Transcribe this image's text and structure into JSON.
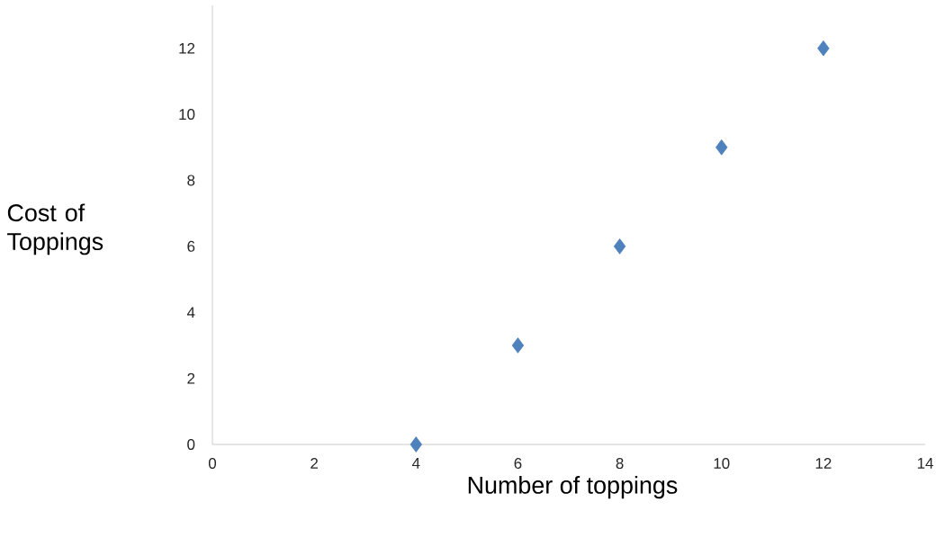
{
  "chart_data": {
    "type": "scatter",
    "xlabel": "Number of toppings",
    "ylabel": "Cost of Toppings",
    "x": [
      4,
      6,
      8,
      10,
      12
    ],
    "values": [
      0,
      3,
      6,
      9,
      12
    ],
    "color": "#4f81bd",
    "marker": "diamond",
    "xlim": [
      0,
      14
    ],
    "ylim": [
      0,
      13.3
    ],
    "xticks": [
      0,
      2,
      4,
      6,
      8,
      10,
      12,
      14
    ],
    "yticks": [
      0,
      2,
      4,
      6,
      8,
      10,
      12
    ]
  }
}
